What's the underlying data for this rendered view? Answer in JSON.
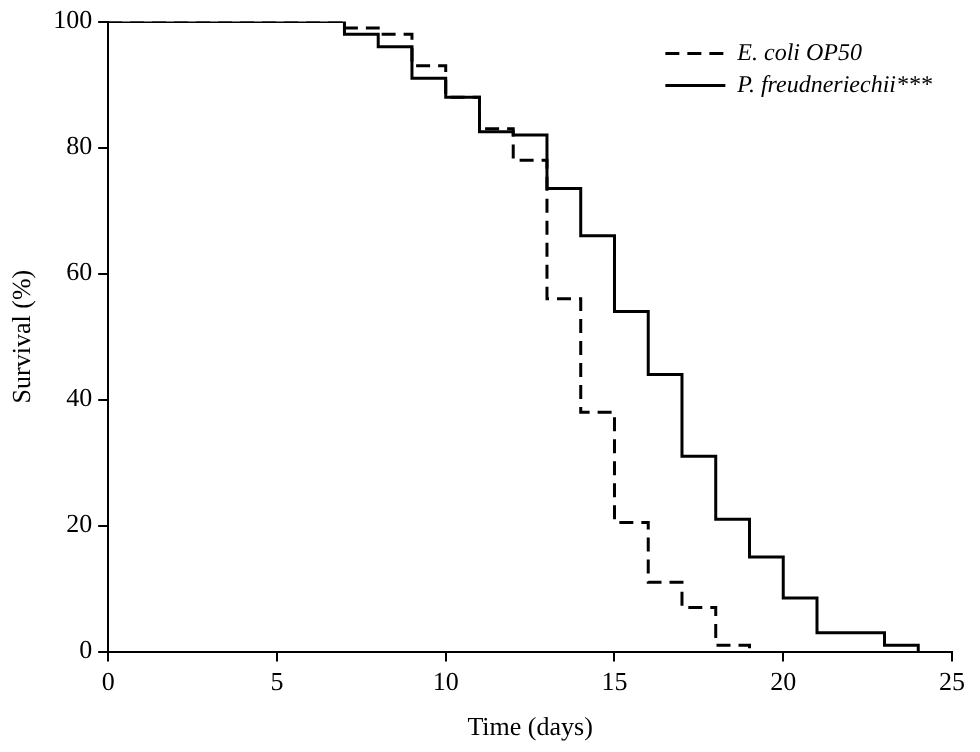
{
  "chart_data": {
    "type": "step",
    "xlabel": "Time (days)",
    "ylabel": "Survival (%)",
    "xlim": [
      0,
      25
    ],
    "xticks": [
      0,
      5,
      10,
      15,
      20,
      25
    ],
    "ylim": [
      0,
      100
    ],
    "yticks": [
      0,
      20,
      40,
      60,
      80,
      100
    ],
    "grid": false,
    "legend": "top right",
    "marker": "none",
    "series": [
      {
        "name": "E. coli OP50",
        "color": "#000000",
        "line_style": "dashed",
        "x": [
          0,
          7,
          8,
          9,
          10,
          11,
          12,
          13,
          14,
          15,
          16,
          17,
          18,
          19
        ],
        "values": [
          100,
          99,
          98,
          93,
          88,
          83,
          78,
          56,
          38,
          20.5,
          11,
          7,
          1,
          0
        ]
      },
      {
        "name": "P. freudneriechii***",
        "color": "#000000",
        "line_style": "solid",
        "x": [
          0,
          7,
          8,
          9,
          10,
          11,
          12,
          13,
          14,
          15,
          16,
          17,
          18,
          19,
          20,
          21,
          23,
          24
        ],
        "values": [
          100,
          98,
          96,
          91,
          88,
          82.5,
          82,
          73.5,
          66,
          54,
          44,
          31,
          21,
          15,
          8.5,
          3,
          1,
          0
        ]
      }
    ]
  }
}
